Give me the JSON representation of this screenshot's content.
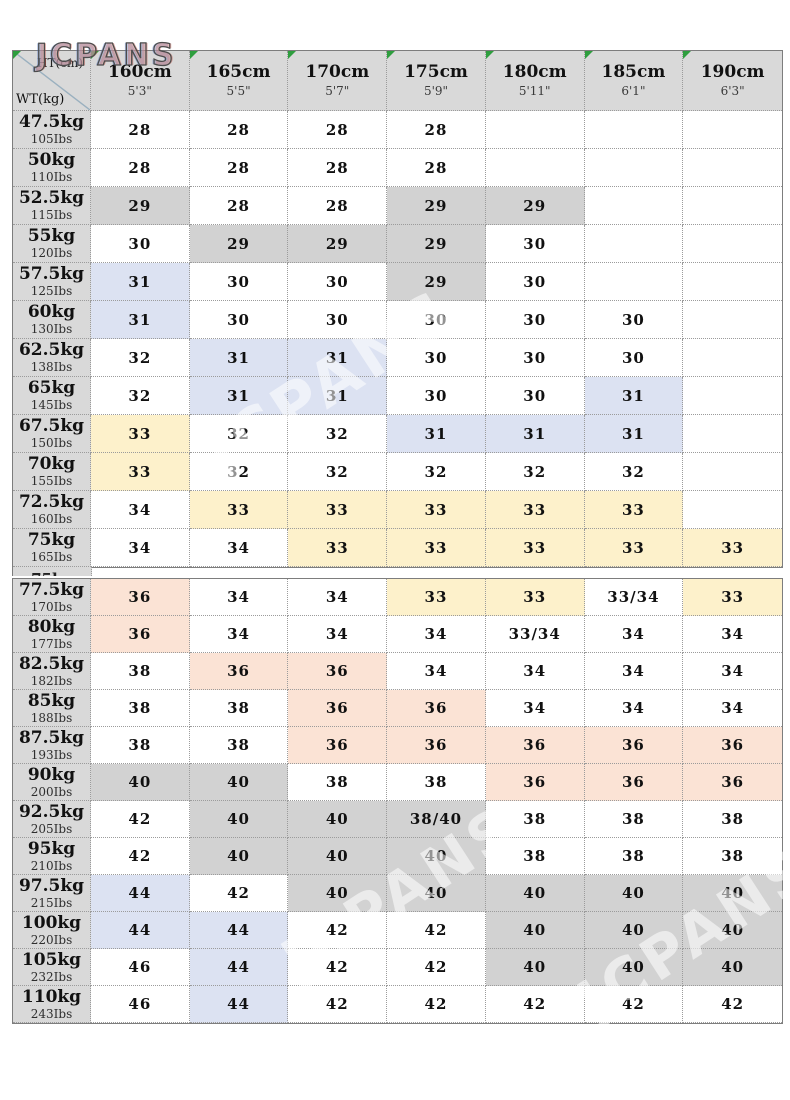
{
  "brand": "JCPANS",
  "watermarks": [
    "JCPANS",
    "JCPANS",
    "JCPANS"
  ],
  "style": {
    "header_bg": "#d9d9d9",
    "flag_color": "#2e9e3e",
    "cell_colors": {
      "w": "#ffffff",
      "g": "#d2d2d2",
      "b": "#dce2f2",
      "y": "#fdf1cb",
      "p": "#fbe3d5"
    }
  },
  "table": {
    "corner": {
      "height_label": "HT(cm)",
      "weight_label": "WT(kg)"
    },
    "columns": [
      {
        "cm": "160cm",
        "ft": "5'3\""
      },
      {
        "cm": "165cm",
        "ft": "5'5\""
      },
      {
        "cm": "170cm",
        "ft": "5'7\""
      },
      {
        "cm": "175cm",
        "ft": "5'9\""
      },
      {
        "cm": "180cm",
        "ft": "5'11\""
      },
      {
        "cm": "185cm",
        "ft": "6'1\""
      },
      {
        "cm": "190cm",
        "ft": "6'3\""
      }
    ],
    "sections": [
      {
        "rows": [
          {
            "kg": "47.5kg",
            "lbs": "105Ibs",
            "cells": [
              [
                "28",
                "w"
              ],
              [
                "28",
                "w"
              ],
              [
                "28",
                "w"
              ],
              [
                "28",
                "w"
              ],
              [
                "",
                "w"
              ],
              [
                "",
                "w"
              ],
              [
                "",
                "w"
              ]
            ]
          },
          {
            "kg": "50kg",
            "lbs": "110Ibs",
            "cells": [
              [
                "28",
                "w"
              ],
              [
                "28",
                "w"
              ],
              [
                "28",
                "w"
              ],
              [
                "28",
                "w"
              ],
              [
                "",
                "w"
              ],
              [
                "",
                "w"
              ],
              [
                "",
                "w"
              ]
            ]
          },
          {
            "kg": "52.5kg",
            "lbs": "115Ibs",
            "cells": [
              [
                "29",
                "g"
              ],
              [
                "28",
                "w"
              ],
              [
                "28",
                "w"
              ],
              [
                "29",
                "g"
              ],
              [
                "29",
                "g"
              ],
              [
                "",
                "w"
              ],
              [
                "",
                "w"
              ]
            ]
          },
          {
            "kg": "55kg",
            "lbs": "120Ibs",
            "cells": [
              [
                "30",
                "w"
              ],
              [
                "29",
                "g"
              ],
              [
                "29",
                "g"
              ],
              [
                "29",
                "g"
              ],
              [
                "30",
                "w"
              ],
              [
                "",
                "w"
              ],
              [
                "",
                "w"
              ]
            ]
          },
          {
            "kg": "57.5kg",
            "lbs": "125Ibs",
            "cells": [
              [
                "31",
                "b"
              ],
              [
                "30",
                "w"
              ],
              [
                "30",
                "w"
              ],
              [
                "29",
                "g"
              ],
              [
                "30",
                "w"
              ],
              [
                "",
                "w"
              ],
              [
                "",
                "w"
              ]
            ]
          },
          {
            "kg": "60kg",
            "lbs": "130Ibs",
            "cells": [
              [
                "31",
                "b"
              ],
              [
                "30",
                "w"
              ],
              [
                "30",
                "w"
              ],
              [
                "30",
                "w"
              ],
              [
                "30",
                "w"
              ],
              [
                "30",
                "w"
              ],
              [
                "",
                "w"
              ]
            ]
          },
          {
            "kg": "62.5kg",
            "lbs": "138Ibs",
            "cells": [
              [
                "32",
                "w"
              ],
              [
                "31",
                "b"
              ],
              [
                "31",
                "b"
              ],
              [
                "30",
                "w"
              ],
              [
                "30",
                "w"
              ],
              [
                "30",
                "w"
              ],
              [
                "",
                "w"
              ]
            ]
          },
          {
            "kg": "65kg",
            "lbs": "145Ibs",
            "cells": [
              [
                "32",
                "w"
              ],
              [
                "31",
                "b"
              ],
              [
                "31",
                "b"
              ],
              [
                "30",
                "w"
              ],
              [
                "30",
                "w"
              ],
              [
                "31",
                "b"
              ],
              [
                "",
                "w"
              ]
            ]
          },
          {
            "kg": "67.5kg",
            "lbs": "150Ibs",
            "cells": [
              [
                "33",
                "y"
              ],
              [
                "32",
                "w"
              ],
              [
                "32",
                "w"
              ],
              [
                "31",
                "b"
              ],
              [
                "31",
                "b"
              ],
              [
                "31",
                "b"
              ],
              [
                "",
                "w"
              ]
            ]
          },
          {
            "kg": "70kg",
            "lbs": "155Ibs",
            "cells": [
              [
                "33",
                "y"
              ],
              [
                "32",
                "w"
              ],
              [
                "32",
                "w"
              ],
              [
                "32",
                "w"
              ],
              [
                "32",
                "w"
              ],
              [
                "32",
                "w"
              ],
              [
                "",
                "w"
              ]
            ]
          },
          {
            "kg": "72.5kg",
            "lbs": "160Ibs",
            "cells": [
              [
                "34",
                "w"
              ],
              [
                "33",
                "y"
              ],
              [
                "33",
                "y"
              ],
              [
                "33",
                "y"
              ],
              [
                "33",
                "y"
              ],
              [
                "33",
                "y"
              ],
              [
                "",
                "w"
              ]
            ]
          },
          {
            "kg": "75kg",
            "lbs": "165Ibs",
            "cells": [
              [
                "34",
                "w"
              ],
              [
                "34",
                "w"
              ],
              [
                "33",
                "y"
              ],
              [
                "33",
                "y"
              ],
              [
                "33",
                "y"
              ],
              [
                "33",
                "y"
              ],
              [
                "33",
                "y"
              ]
            ]
          }
        ]
      },
      {
        "rows": [
          {
            "kg": "77.5kg",
            "lbs": "170Ibs",
            "cells": [
              [
                "36",
                "p"
              ],
              [
                "34",
                "w"
              ],
              [
                "34",
                "w"
              ],
              [
                "33",
                "y"
              ],
              [
                "33",
                "y"
              ],
              [
                "33/34",
                "w"
              ],
              [
                "33",
                "y"
              ]
            ]
          },
          {
            "kg": "80kg",
            "lbs": "177Ibs",
            "cells": [
              [
                "36",
                "p"
              ],
              [
                "34",
                "w"
              ],
              [
                "34",
                "w"
              ],
              [
                "34",
                "w"
              ],
              [
                "33/34",
                "w"
              ],
              [
                "34",
                "w"
              ],
              [
                "34",
                "w"
              ]
            ]
          },
          {
            "kg": "82.5kg",
            "lbs": "182Ibs",
            "cells": [
              [
                "38",
                "w"
              ],
              [
                "36",
                "p"
              ],
              [
                "36",
                "p"
              ],
              [
                "34",
                "w"
              ],
              [
                "34",
                "w"
              ],
              [
                "34",
                "w"
              ],
              [
                "34",
                "w"
              ]
            ]
          },
          {
            "kg": "85kg",
            "lbs": "188Ibs",
            "cells": [
              [
                "38",
                "w"
              ],
              [
                "38",
                "w"
              ],
              [
                "36",
                "p"
              ],
              [
                "36",
                "p"
              ],
              [
                "34",
                "w"
              ],
              [
                "34",
                "w"
              ],
              [
                "34",
                "w"
              ]
            ]
          },
          {
            "kg": "87.5kg",
            "lbs": "193Ibs",
            "cells": [
              [
                "38",
                "w"
              ],
              [
                "38",
                "w"
              ],
              [
                "36",
                "p"
              ],
              [
                "36",
                "p"
              ],
              [
                "36",
                "p"
              ],
              [
                "36",
                "p"
              ],
              [
                "36",
                "p"
              ]
            ]
          },
          {
            "kg": "90kg",
            "lbs": "200Ibs",
            "cells": [
              [
                "40",
                "g"
              ],
              [
                "40",
                "g"
              ],
              [
                "38",
                "w"
              ],
              [
                "38",
                "w"
              ],
              [
                "36",
                "p"
              ],
              [
                "36",
                "p"
              ],
              [
                "36",
                "p"
              ]
            ]
          },
          {
            "kg": "92.5kg",
            "lbs": "205Ibs",
            "cells": [
              [
                "42",
                "w"
              ],
              [
                "40",
                "g"
              ],
              [
                "40",
                "g"
              ],
              [
                "38/40",
                "g"
              ],
              [
                "38",
                "w"
              ],
              [
                "38",
                "w"
              ],
              [
                "38",
                "w"
              ]
            ]
          },
          {
            "kg": "95kg",
            "lbs": "210Ibs",
            "cells": [
              [
                "42",
                "w"
              ],
              [
                "40",
                "g"
              ],
              [
                "40",
                "g"
              ],
              [
                "40",
                "g"
              ],
              [
                "38",
                "w"
              ],
              [
                "38",
                "w"
              ],
              [
                "38",
                "w"
              ]
            ]
          },
          {
            "kg": "97.5kg",
            "lbs": "215Ibs",
            "cells": [
              [
                "44",
                "b"
              ],
              [
                "42",
                "w"
              ],
              [
                "40",
                "g"
              ],
              [
                "40",
                "g"
              ],
              [
                "40",
                "g"
              ],
              [
                "40",
                "g"
              ],
              [
                "40",
                "g"
              ]
            ]
          },
          {
            "kg": "100kg",
            "lbs": "220Ibs",
            "cells": [
              [
                "44",
                "b"
              ],
              [
                "44",
                "b"
              ],
              [
                "42",
                "w"
              ],
              [
                "42",
                "w"
              ],
              [
                "40",
                "g"
              ],
              [
                "40",
                "g"
              ],
              [
                "40",
                "g"
              ]
            ]
          },
          {
            "kg": "105kg",
            "lbs": "232Ibs",
            "cells": [
              [
                "46",
                "w"
              ],
              [
                "44",
                "b"
              ],
              [
                "42",
                "w"
              ],
              [
                "42",
                "w"
              ],
              [
                "40",
                "g"
              ],
              [
                "40",
                "g"
              ],
              [
                "40",
                "g"
              ]
            ]
          },
          {
            "kg": "110kg",
            "lbs": "243Ibs",
            "cells": [
              [
                "46",
                "w"
              ],
              [
                "44",
                "b"
              ],
              [
                "42",
                "w"
              ],
              [
                "42",
                "w"
              ],
              [
                "42",
                "w"
              ],
              [
                "42",
                "w"
              ],
              [
                "42",
                "w"
              ]
            ]
          }
        ]
      }
    ]
  }
}
